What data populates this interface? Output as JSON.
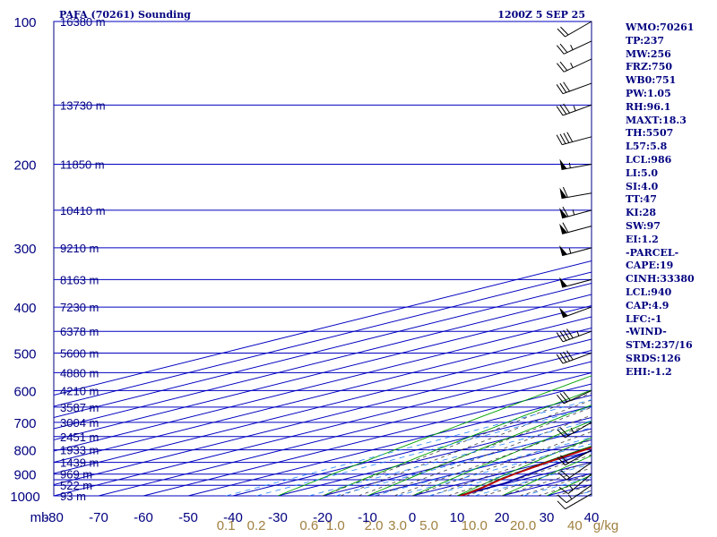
{
  "header": {
    "title": "PAFA (70261) Sounding",
    "time": "1200Z  5 SEP 25"
  },
  "indices": [
    "WMO:70261",
    "TP:237",
    "MW:256",
    "FRZ:750",
    "WB0:751",
    "PW:1.05",
    "RH:96.1",
    "MAXT:18.3",
    "TH:5507",
    "L57:5.8",
    "LCL:986",
    "LI:5.0",
    "SI:4.0",
    "TT:47",
    "KI:28",
    "SW:97",
    "EI:1.2",
    "-PARCEL-",
    "CAPE:19",
    "CINH:33380",
    "LCL:940",
    "CAP:4.9",
    "LFC:-1",
    "-WIND-",
    "STM:237/16",
    "SRDS:126",
    "EHI:-1.2"
  ],
  "colors": {
    "frame": "#000080",
    "grid": "#0000c0",
    "dry_adiabat": "#00a000",
    "moist_adiabat": "#404040",
    "mixing_ratio": "#2080ff",
    "temperature": "#c00000",
    "dewpoint": "#006000",
    "parcel": "#0000a0",
    "mix_label": "#a08040"
  },
  "chart_data": {
    "type": "skew-t",
    "pressure_axis": {
      "unit": "mb",
      "range": [
        100,
        1000
      ],
      "scale": "log",
      "ticks": [
        100,
        200,
        300,
        400,
        500,
        600,
        700,
        800,
        900,
        1000
      ],
      "labels": [
        "100",
        "200",
        "300",
        "400",
        "500",
        "600",
        "700",
        "800",
        "900",
        "1000"
      ]
    },
    "temperature_axis": {
      "unit_label": "mb",
      "range": [
        -80,
        40
      ],
      "ticks": [
        -80,
        -70,
        -60,
        -50,
        -40,
        -30,
        -20,
        -10,
        0,
        10,
        20,
        30,
        40
      ],
      "labels": [
        "-80",
        "-70",
        "-60",
        "-50",
        "-40",
        "-30",
        "-20",
        "-10",
        "0",
        "10",
        "20",
        "30",
        "40"
      ]
    },
    "height_labels": [
      {
        "p": 100,
        "text": "16380 m"
      },
      {
        "p": 150,
        "text": "13730 m"
      },
      {
        "p": 200,
        "text": "11850 m"
      },
      {
        "p": 250,
        "text": "10410 m"
      },
      {
        "p": 300,
        "text": "9210 m"
      },
      {
        "p": 350,
        "text": "8163 m"
      },
      {
        "p": 400,
        "text": "7230 m"
      },
      {
        "p": 450,
        "text": "6378 m"
      },
      {
        "p": 500,
        "text": "5600 m"
      },
      {
        "p": 550,
        "text": "4880 m"
      },
      {
        "p": 600,
        "text": "4210 m"
      },
      {
        "p": 650,
        "text": "3587 m"
      },
      {
        "p": 700,
        "text": "3004 m"
      },
      {
        "p": 750,
        "text": "2451 m"
      },
      {
        "p": 800,
        "text": "1933 m"
      },
      {
        "p": 850,
        "text": "1439 m"
      },
      {
        "p": 900,
        "text": "969 m"
      },
      {
        "p": 950,
        "text": "522 m"
      },
      {
        "p": 1000,
        "text": "93 m"
      }
    ],
    "mixing_ratio_labels": [
      {
        "w": 0.1,
        "text": "0.1"
      },
      {
        "w": 0.2,
        "text": "0.2"
      },
      {
        "w": 0.6,
        "text": "0.6"
      },
      {
        "w": 1.0,
        "text": "1.0"
      },
      {
        "w": 2.0,
        "text": "2.0"
      },
      {
        "w": 3.0,
        "text": "3.0"
      },
      {
        "w": 5.0,
        "text": "5.0"
      },
      {
        "w": 10.0,
        "text": "10.0"
      },
      {
        "w": 20.0,
        "text": "20.0"
      },
      {
        "w": 40.0,
        "text": "40"
      }
    ],
    "mixing_ratio_unit": "g/kg",
    "temperature": [
      [
        1000,
        10.7
      ],
      [
        990,
        10.4
      ],
      [
        960,
        8.3
      ],
      [
        925,
        5.2
      ],
      [
        900,
        3.4
      ],
      [
        850,
        0.2
      ],
      [
        800,
        -2.6
      ],
      [
        750,
        -4.6
      ],
      [
        700,
        -6.6
      ],
      [
        650,
        -9.0
      ],
      [
        600,
        -11.7
      ],
      [
        585,
        -12.1
      ],
      [
        550,
        -15.3
      ],
      [
        500,
        -20.7
      ],
      [
        450,
        -26.3
      ],
      [
        400,
        -32.3
      ],
      [
        350,
        -38.0
      ],
      [
        300,
        -44.9
      ],
      [
        270,
        -49.1
      ],
      [
        255,
        -52.0
      ],
      [
        238,
        -54.4
      ],
      [
        230,
        -52.9
      ],
      [
        210,
        -49.5
      ],
      [
        200,
        -47.6
      ],
      [
        175,
        -45.3
      ],
      [
        150,
        -45.1
      ],
      [
        135,
        -45.0
      ],
      [
        120,
        -44.4
      ],
      [
        110,
        -44.5
      ],
      [
        100,
        -44.1
      ]
    ],
    "dewpoint": [
      [
        1000,
        10.3
      ],
      [
        990,
        10.1
      ],
      [
        960,
        8.2
      ],
      [
        925,
        5.0
      ],
      [
        900,
        3.3
      ],
      [
        850,
        -0.2
      ],
      [
        800,
        -3.3
      ],
      [
        750,
        -5.9
      ],
      [
        700,
        -8.4
      ],
      [
        650,
        -10.2
      ],
      [
        620,
        -12.6
      ],
      [
        600,
        -14.1
      ],
      [
        585,
        -14.3
      ],
      [
        550,
        -17.5
      ],
      [
        500,
        -22.6
      ],
      [
        450,
        -29.1
      ],
      [
        400,
        -34.8
      ],
      [
        350,
        -40.5
      ],
      [
        300,
        -48.3
      ],
      [
        270,
        -52.0
      ],
      [
        262,
        -51.3
      ],
      [
        258,
        -54.4
      ],
      [
        250,
        -56.5
      ],
      [
        245,
        -59.0
      ],
      [
        240,
        -61.6
      ],
      [
        225,
        -64.0
      ],
      [
        221,
        -67.0
      ],
      [
        223,
        -60.6
      ],
      [
        215,
        -64.7
      ],
      [
        205,
        -70.3
      ],
      [
        198,
        -77.2
      ],
      [
        180,
        -78.7
      ],
      [
        150,
        -77.7
      ]
    ],
    "parcel": [
      [
        990,
        10.4
      ],
      [
        940,
        9.3
      ],
      [
        900,
        6.6
      ],
      [
        850,
        3.2
      ],
      [
        800,
        -0.5
      ],
      [
        700,
        -8.5
      ],
      [
        600,
        -17.4
      ],
      [
        500,
        -28.5
      ],
      [
        400,
        -43.5
      ],
      [
        300,
        -63.5
      ],
      [
        200,
        -88.6
      ]
    ],
    "wind_barbs": [
      {
        "p": 990,
        "dir": 240,
        "kt": 10
      },
      {
        "p": 950,
        "dir": 235,
        "kt": 15
      },
      {
        "p": 900,
        "dir": 230,
        "kt": 15
      },
      {
        "p": 850,
        "dir": 235,
        "kt": 20
      },
      {
        "p": 800,
        "dir": 240,
        "kt": 20
      },
      {
        "p": 700,
        "dir": 240,
        "kt": 25
      },
      {
        "p": 600,
        "dir": 245,
        "kt": 30
      },
      {
        "p": 500,
        "dir": 250,
        "kt": 40
      },
      {
        "p": 450,
        "dir": 250,
        "kt": 45
      },
      {
        "p": 400,
        "dir": 250,
        "kt": 50
      },
      {
        "p": 350,
        "dir": 255,
        "kt": 50
      },
      {
        "p": 300,
        "dir": 255,
        "kt": 55
      },
      {
        "p": 270,
        "dir": 255,
        "kt": 60
      },
      {
        "p": 250,
        "dir": 255,
        "kt": 65
      },
      {
        "p": 230,
        "dir": 260,
        "kt": 60
      },
      {
        "p": 200,
        "dir": 260,
        "kt": 55
      },
      {
        "p": 175,
        "dir": 255,
        "kt": 40
      },
      {
        "p": 150,
        "dir": 250,
        "kt": 35
      },
      {
        "p": 135,
        "dir": 250,
        "kt": 30
      },
      {
        "p": 120,
        "dir": 245,
        "kt": 25
      },
      {
        "p": 110,
        "dir": 245,
        "kt": 25
      },
      {
        "p": 100,
        "dir": 240,
        "kt": 20
      }
    ]
  }
}
